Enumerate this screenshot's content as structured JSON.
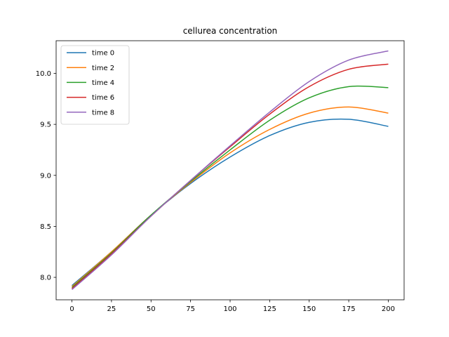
{
  "chart_data": {
    "type": "line",
    "title": "cellurea concentration",
    "xlabel": "",
    "ylabel": "",
    "xlim": [
      -10,
      210
    ],
    "ylim": [
      7.78,
      10.32
    ],
    "xticks": [
      0,
      25,
      50,
      75,
      100,
      125,
      150,
      175,
      200
    ],
    "yticks": [
      8.0,
      8.5,
      9.0,
      9.5,
      10.0
    ],
    "ytick_labels": [
      "8.0",
      "8.5",
      "9.0",
      "9.5",
      "10.0"
    ],
    "grid": false,
    "legend_position": "top-left",
    "x": [
      0,
      25,
      50,
      75,
      100,
      125,
      150,
      175,
      200
    ],
    "series": [
      {
        "name": "time 0",
        "color": "#1f77b4",
        "values": [
          7.92,
          8.25,
          8.61,
          8.92,
          9.18,
          9.39,
          9.52,
          9.55,
          9.48
        ]
      },
      {
        "name": "time 2",
        "color": "#ff7f0e",
        "values": [
          7.91,
          8.25,
          8.61,
          8.93,
          9.22,
          9.45,
          9.61,
          9.67,
          9.61
        ]
      },
      {
        "name": "time 4",
        "color": "#2ca02c",
        "values": [
          7.9,
          8.24,
          8.61,
          8.94,
          9.25,
          9.54,
          9.76,
          9.87,
          9.86
        ]
      },
      {
        "name": "time 6",
        "color": "#d62728",
        "values": [
          7.89,
          8.23,
          8.6,
          8.95,
          9.28,
          9.6,
          9.87,
          10.04,
          10.09
        ]
      },
      {
        "name": "time 8",
        "color": "#9467bd",
        "values": [
          7.88,
          8.22,
          8.6,
          8.95,
          9.29,
          9.62,
          9.92,
          10.13,
          10.22
        ]
      }
    ]
  }
}
